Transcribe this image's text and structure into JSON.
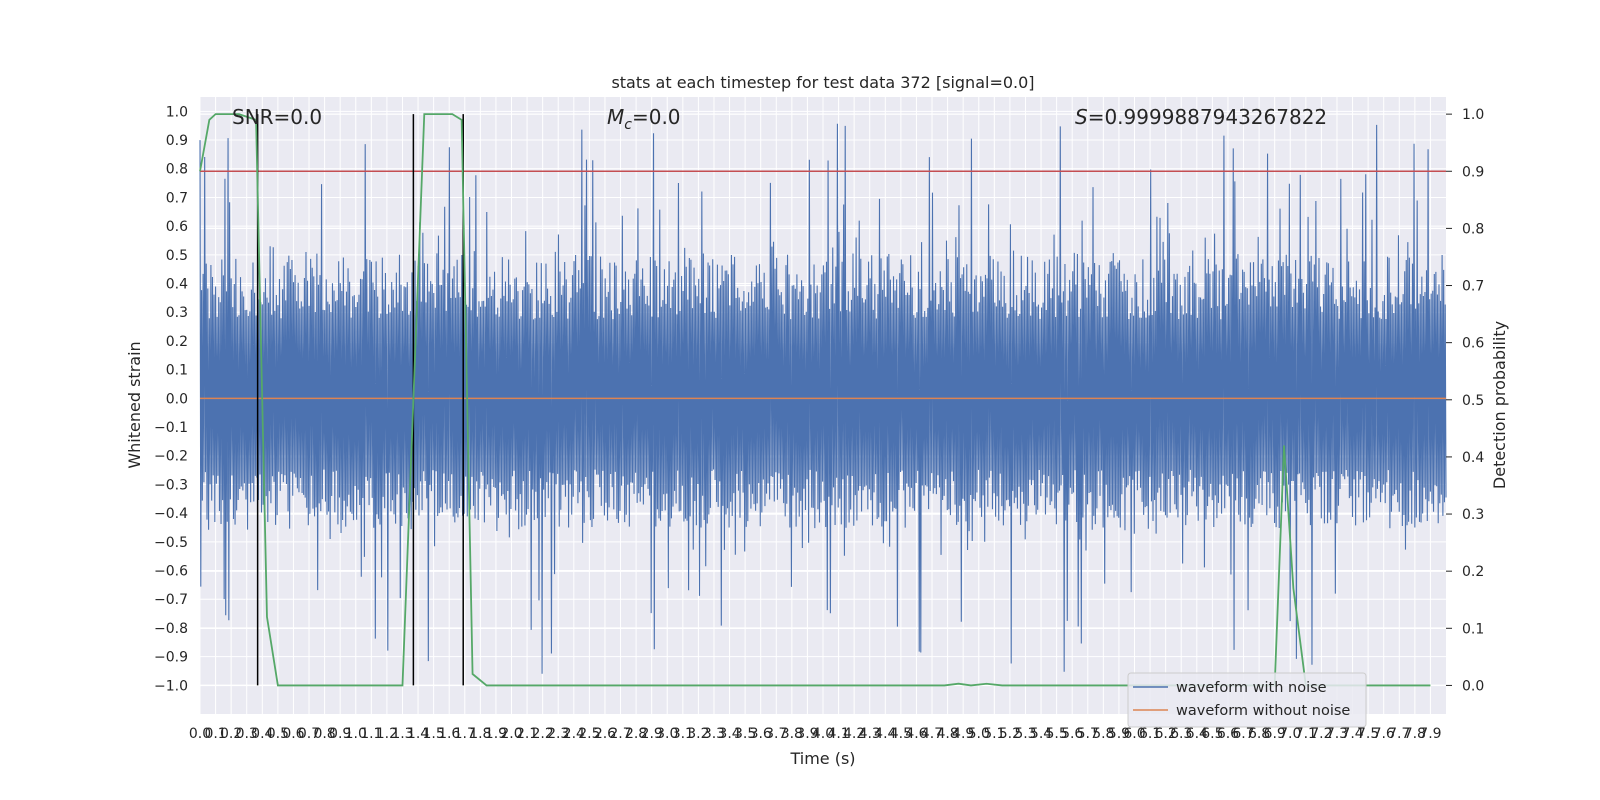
{
  "chart_data": {
    "type": "line",
    "title": "stats at each timestep for test data 372 [signal=0.0]",
    "xlabel": "Time (s)",
    "ylabel": "Whitened strain",
    "ylabel_right": "Detection probability",
    "xlim": [
      0.0,
      8.0
    ],
    "ylim": [
      -1.1,
      1.05
    ],
    "ylim_right": [
      -0.05,
      1.03
    ],
    "grid": true,
    "legend_placement": "lower right",
    "annotations": {
      "snr": "SNR=0.0",
      "mc_symbol": "M",
      "mc_sub": "c",
      "mc_value": "=0.0",
      "s_symbol": "S",
      "s_value": "=0.9999887943267822"
    },
    "x_tick_labels": [
      "0.0",
      "0.1",
      "0.2",
      "0.3",
      "0.4",
      "0.5",
      "0.6",
      "0.7",
      "0.8",
      "0.9",
      "1.0",
      "1.1",
      "1.2",
      "1.3",
      "1.4",
      "1.5",
      "1.6",
      "1.7",
      "1.8",
      "1.9",
      "2.0",
      "2.1",
      "2.2",
      "2.3",
      "2.4",
      "2.5",
      "2.6",
      "2.7",
      "2.8",
      "2.9",
      "3.0",
      "3.1",
      "3.2",
      "3.3",
      "3.4",
      "3.5",
      "3.6",
      "3.7",
      "3.8",
      "3.9",
      "4.0",
      "4.1",
      "4.2",
      "4.3",
      "4.4",
      "4.5",
      "4.6",
      "4.7",
      "4.8",
      "4.9",
      "5.0",
      "5.1",
      "5.2",
      "5.3",
      "5.4",
      "5.5",
      "5.6",
      "5.7",
      "5.8",
      "5.9",
      "6.0",
      "6.1",
      "6.2",
      "6.3",
      "6.4",
      "6.5",
      "6.6",
      "6.7",
      "6.8",
      "6.9",
      "7.0",
      "7.1",
      "7.2",
      "7.3",
      "7.4",
      "7.5",
      "7.6",
      "7.7",
      "7.8",
      "7.9"
    ],
    "y_tick_labels": [
      "1.0",
      "0.9",
      "0.8",
      "0.7",
      "0.6",
      "0.5",
      "0.4",
      "0.3",
      "0.2",
      "0.1",
      "0.0",
      "-0.1",
      "-0.2",
      "-0.3",
      "-0.4",
      "-0.5",
      "-0.6",
      "-0.7",
      "-0.8",
      "-0.9",
      "-1.0"
    ],
    "y2_tick_labels": [
      "1.0",
      "0.9",
      "0.8",
      "0.7",
      "0.6",
      "0.5",
      "0.4",
      "0.3",
      "0.2",
      "0.1",
      "0.0"
    ],
    "threshold_right": 0.9,
    "event_lines_x": [
      0.37,
      1.37,
      1.69
    ],
    "series": [
      {
        "name": "waveform with noise",
        "color": "#4c72b0",
        "kind": "noise",
        "envelope_upper": 0.5,
        "envelope_lower": -0.45,
        "peak_max": 0.96,
        "peak_min": -0.99
      },
      {
        "name": "waveform without noise",
        "color": "#dd8452",
        "y": 0.0
      },
      {
        "name": "detection probability",
        "color": "#55a868",
        "axis": "right",
        "x": [
          0.0,
          0.06,
          0.1,
          0.25,
          0.36,
          0.43,
          0.5,
          0.6,
          1.0,
          1.3,
          1.37,
          1.44,
          1.62,
          1.68,
          1.75,
          1.84,
          4.78,
          4.87,
          4.95,
          5.05,
          5.15,
          5.3,
          6.9,
          6.96,
          7.02,
          7.1,
          7.9
        ],
        "y": [
          0.9,
          0.99,
          1.0,
          1.0,
          0.99,
          0.12,
          0.0,
          0.0,
          0.0,
          0.0,
          0.5,
          1.0,
          1.0,
          0.99,
          0.02,
          0.0,
          0.0,
          0.003,
          0.0,
          0.003,
          0.0,
          0.0,
          0.0,
          0.42,
          0.17,
          0.0,
          0.0
        ]
      }
    ],
    "colors": {
      "background": "#eaeaf2",
      "grid": "#ffffff",
      "threshold": "#c44e52",
      "event_line": "#000000"
    }
  }
}
